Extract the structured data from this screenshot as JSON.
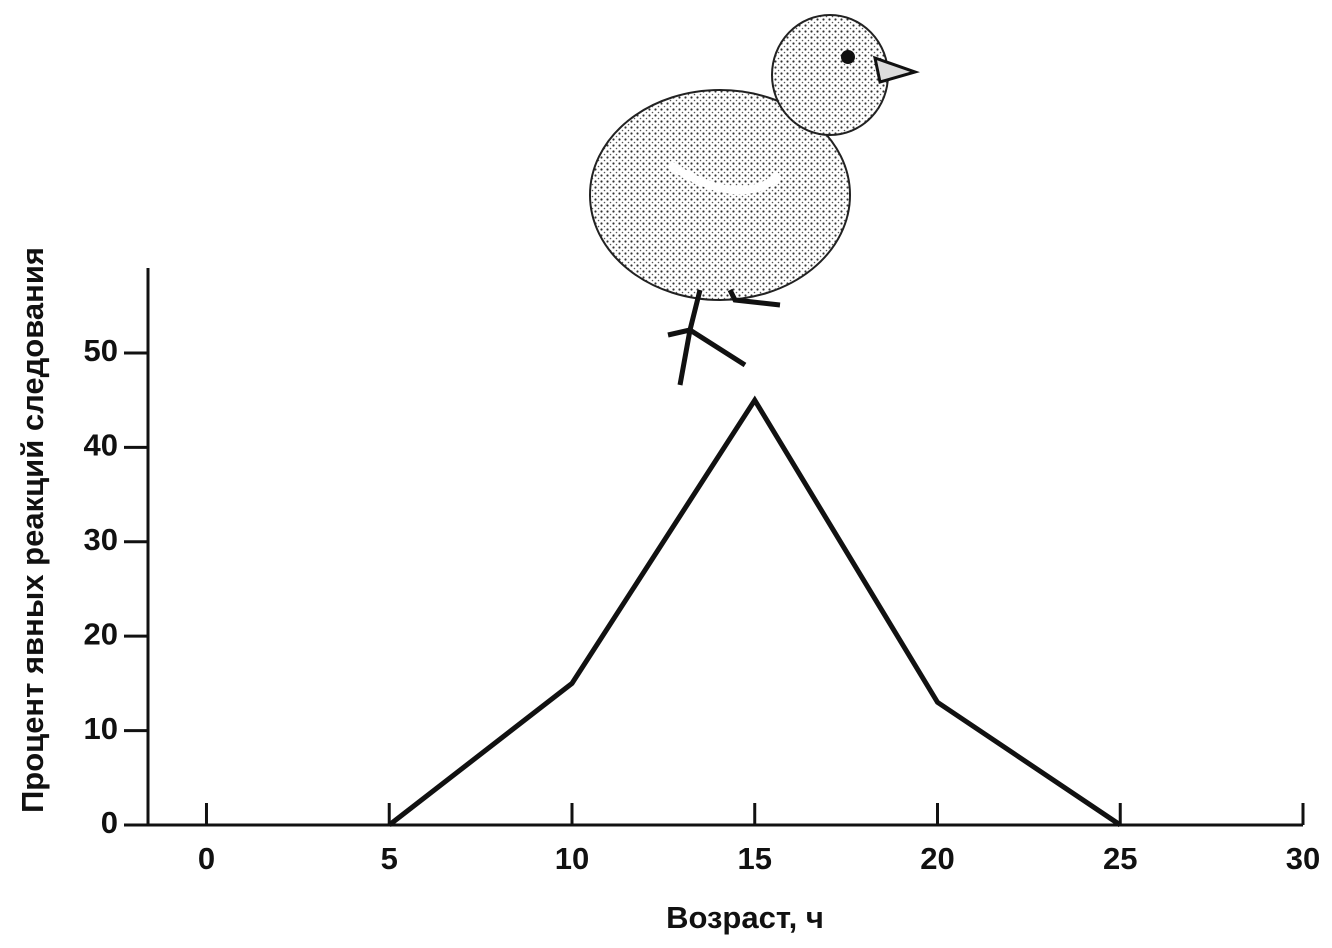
{
  "chart_data": {
    "type": "line",
    "xlabel": "Возраст, ч",
    "ylabel": "Процент явных реакций следования",
    "x": [
      5,
      10,
      15,
      20,
      25
    ],
    "values": [
      0,
      15,
      45,
      13,
      0
    ],
    "color": "#111111",
    "xlim": [
      -1.6,
      30
    ],
    "xticks": [
      0,
      5,
      10,
      15,
      20,
      25,
      30
    ],
    "ylim": [
      0,
      59
    ],
    "yticks": [
      0,
      10,
      20,
      30,
      40,
      50
    ],
    "grid": false
  }
}
